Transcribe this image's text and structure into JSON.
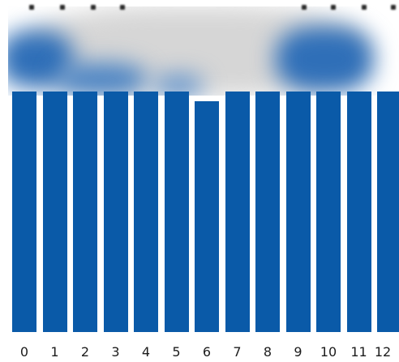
{
  "chart_data": {
    "type": "bar",
    "categories": [
      "0",
      "1",
      "2",
      "3",
      "4",
      "5",
      "6",
      "7",
      "8",
      "9",
      "10",
      "11",
      "12"
    ],
    "values": [
      1.0,
      1.0,
      1.0,
      1.0,
      1.0,
      1.0,
      0.96,
      1.0,
      1.0,
      1.0,
      1.0,
      1.0,
      1.0
    ],
    "bar_color": "#0a5aa8",
    "ylim": [
      0,
      1
    ]
  },
  "colors": {
    "bar": "#0a5aa8",
    "background": "#ffffff",
    "blur_light": "#d9d9d9",
    "blur_blue": "#2f6fb8"
  }
}
